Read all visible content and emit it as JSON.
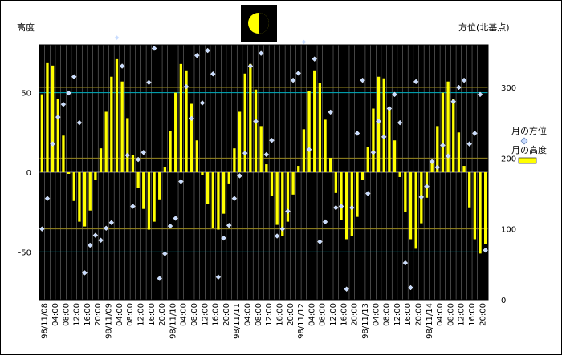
{
  "chart_data": {
    "type": "bar",
    "left_axis_title": "高度",
    "right_axis_title": "方位(北基点)",
    "left_ylim": [
      -80,
      80
    ],
    "left_yticks": [
      -50,
      0,
      50
    ],
    "right_ylim": [
      0,
      360
    ],
    "right_yticks": [
      0,
      100,
      200,
      300
    ],
    "x_tick_labels": [
      "98/11/08",
      "04:00",
      "08:00",
      "12:00",
      "16:00",
      "20:00",
      "98/11/09",
      "04:00",
      "08:00",
      "12:00",
      "16:00",
      "20:00",
      "98/11/10",
      "04:00",
      "08:00",
      "12:00",
      "16:00",
      "20:00",
      "98/11/11",
      "04:00",
      "08:00",
      "12:00",
      "16:00",
      "20:00",
      "98/11/12",
      "04:00",
      "08:00",
      "12:00",
      "16:00",
      "20:00",
      "98/11/13",
      "04:00",
      "08:00",
      "12:00",
      "16:00",
      "20:00",
      "98/11/14",
      "04:00",
      "08:00",
      "12:00",
      "16:00",
      "20:00"
    ],
    "hours_per_step": 1,
    "series": [
      {
        "name": "月の高度",
        "axis": "left",
        "color": "#ffff00",
        "values": [
          49,
          69,
          67,
          46,
          23,
          -1,
          -18,
          -31,
          -34,
          -24,
          -5,
          15,
          38,
          60,
          71,
          57,
          34,
          11,
          -10,
          -23,
          -36,
          -31,
          -17,
          3,
          26,
          50,
          68,
          64,
          43,
          20,
          -2,
          -20,
          -35,
          -36,
          -26,
          -7,
          15,
          38,
          62,
          68,
          52,
          29,
          5,
          -15,
          -33,
          -40,
          -31,
          -14,
          4,
          27,
          51,
          64,
          56,
          33,
          9,
          -13,
          -30,
          -42,
          -40,
          -28,
          -5,
          16,
          40,
          60,
          59,
          41,
          20,
          -3,
          -25,
          -42,
          -48,
          -32,
          -16,
          6,
          29,
          50,
          57,
          46,
          25,
          4,
          -22,
          -42,
          -51,
          -45
        ]
      },
      {
        "name": "月の方位",
        "axis": "right",
        "color": "#c8dcff",
        "values": [
          100,
          143,
          220,
          258,
          276,
          292,
          315,
          250,
          38,
          77,
          91,
          84,
          101,
          109,
          370,
          330,
          204,
          132,
          198,
          208,
          307,
          355,
          30,
          65,
          104,
          115,
          167,
          301,
          256,
          345,
          278,
          352,
          319,
          32,
          87,
          105,
          143,
          175,
          207,
          330,
          252,
          348,
          205,
          225,
          90,
          100,
          125,
          310,
          320,
          364,
          212,
          340,
          82,
          110,
          265,
          130,
          132,
          15,
          130,
          235,
          310,
          150,
          208,
          252,
          230,
          270,
          290,
          250,
          52,
          17,
          308,
          145,
          160,
          195,
          187,
          218,
          203,
          280,
          300,
          310,
          220,
          235,
          290,
          70
        ]
      }
    ]
  }
}
